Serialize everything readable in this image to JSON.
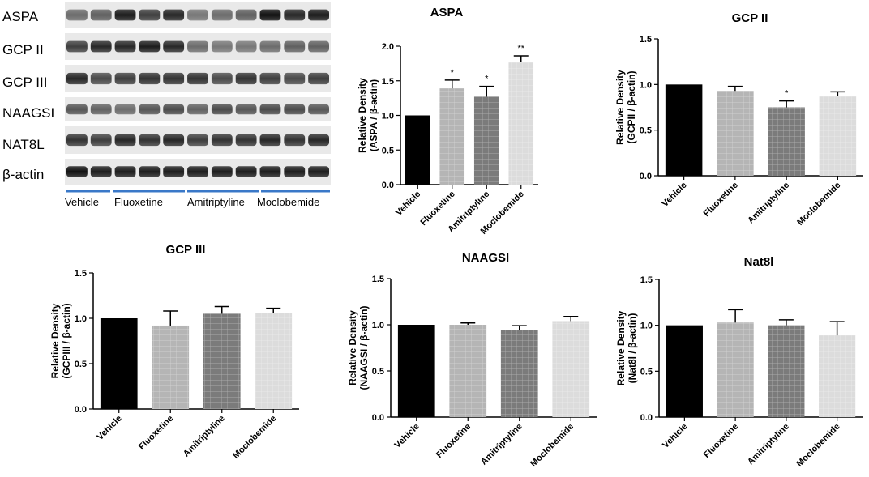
{
  "blot": {
    "rows": [
      "ASPA",
      "GCP II",
      "GCP III",
      "NAAGSI",
      "NAT8L",
      "β-actin"
    ],
    "groups": [
      "Vehicle",
      "Fluoxetine",
      "Amitriptyline",
      "Moclobemide"
    ]
  },
  "colors": {
    "Vehicle": "#000000",
    "Fluoxetine": "#b5b5b5",
    "Amitriptyline": "#7b7b7b",
    "Moclobemide": "#dcdcdc",
    "underline": "#3a78c8"
  },
  "chart_data": [
    {
      "type": "bar",
      "title": "ASPA",
      "ylabel": [
        "Relative Density",
        "(ASPA / β-actin)"
      ],
      "categories": [
        "Vehicle",
        "Fluoxetine",
        "Amitriptyline",
        "Moclobemide"
      ],
      "values": [
        1.0,
        1.39,
        1.27,
        1.77
      ],
      "errors": [
        0,
        0.12,
        0.15,
        0.09
      ],
      "significance": [
        "",
        "*",
        "*",
        "**"
      ],
      "ylim": [
        0,
        2.0
      ],
      "yticks": [
        "0.0",
        "0.5",
        "1.0",
        "1.5",
        "2.0"
      ]
    },
    {
      "type": "bar",
      "title": "GCP II",
      "ylabel": [
        "Relative Density",
        "(GCPII / β-actin)"
      ],
      "categories": [
        "Vehicle",
        "Fluoxetine",
        "Amitriptyline",
        "Moclobemide"
      ],
      "values": [
        1.0,
        0.93,
        0.75,
        0.87
      ],
      "errors": [
        0,
        0.05,
        0.07,
        0.05
      ],
      "significance": [
        "",
        "",
        "*",
        ""
      ],
      "ylim": [
        0,
        1.5
      ],
      "yticks": [
        "0.0",
        "0.5",
        "1.0",
        "1.5"
      ]
    },
    {
      "type": "bar",
      "title": "GCP III",
      "ylabel": [
        "Relative Density",
        "(GCPIII / β-actin)"
      ],
      "categories": [
        "Vehicle",
        "Fluoxetine",
        "Amitriptyline",
        "Moclobemide"
      ],
      "values": [
        1.0,
        0.92,
        1.05,
        1.06
      ],
      "errors": [
        0,
        0.16,
        0.08,
        0.05
      ],
      "significance": [
        "",
        "",
        "",
        ""
      ],
      "ylim": [
        0,
        1.5
      ],
      "yticks": [
        "0.0",
        "0.5",
        "1.0",
        "1.5"
      ]
    },
    {
      "type": "bar",
      "title": "NAAGSI",
      "ylabel": [
        "Relative Density",
        "(NAAGSI / β-actin)"
      ],
      "categories": [
        "Vehicle",
        "Fluoxetine",
        "Amitriptyline",
        "Moclobemide"
      ],
      "values": [
        1.0,
        1.0,
        0.94,
        1.04
      ],
      "errors": [
        0,
        0.02,
        0.05,
        0.05
      ],
      "significance": [
        "",
        "",
        "",
        ""
      ],
      "ylim": [
        0,
        1.5
      ],
      "yticks": [
        "0.0",
        "0.5",
        "1.0",
        "1.5"
      ]
    },
    {
      "type": "bar",
      "title": "Nat8l",
      "ylabel": [
        "Relative Density",
        "(Nat8l / β-actin)"
      ],
      "categories": [
        "Vehicle",
        "Fluoxetine",
        "Amitriptyline",
        "Moclobemide"
      ],
      "values": [
        1.0,
        1.03,
        1.0,
        0.89
      ],
      "errors": [
        0,
        0.14,
        0.06,
        0.15
      ],
      "significance": [
        "",
        "",
        "",
        ""
      ],
      "ylim": [
        0,
        1.5
      ],
      "yticks": [
        "0.0",
        "0.5",
        "1.0",
        "1.5"
      ]
    }
  ]
}
